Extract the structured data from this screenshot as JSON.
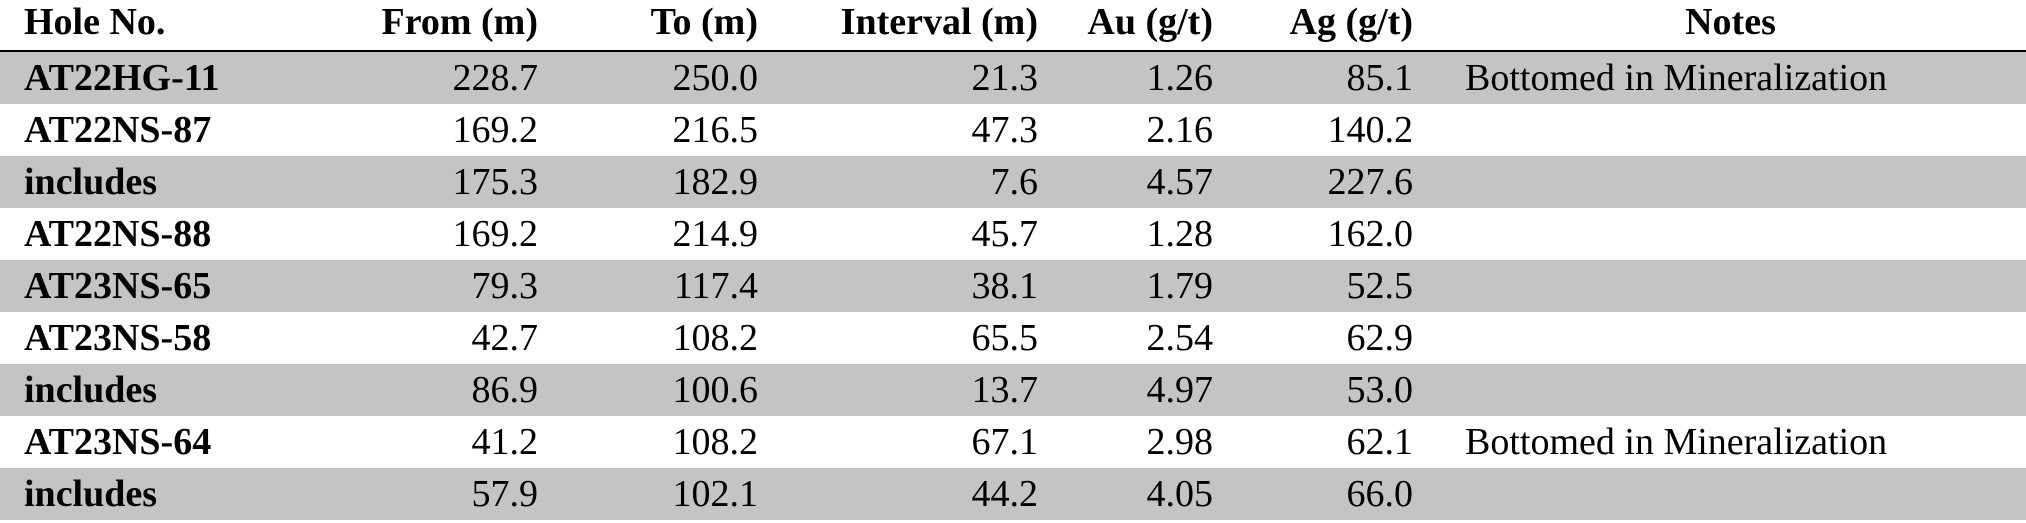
{
  "table": {
    "headers": [
      "Hole No.",
      "From (m)",
      "To (m)",
      "Interval (m)",
      "Au (g/t)",
      "Ag (g/t)",
      "Notes"
    ],
    "rows": [
      [
        "AT22HG-11",
        "228.7",
        "250.0",
        "21.3",
        "1.26",
        "85.1",
        "Bottomed in Mineralization"
      ],
      [
        "AT22NS-87",
        "169.2",
        "216.5",
        "47.3",
        "2.16",
        "140.2",
        null
      ],
      [
        "includes",
        "175.3",
        "182.9",
        "7.6",
        "4.57",
        "227.6",
        null
      ],
      [
        "AT22NS-88",
        "169.2",
        "214.9",
        "45.7",
        "1.28",
        "162.0",
        null
      ],
      [
        "AT23NS-65",
        "79.3",
        "117.4",
        "38.1",
        "1.79",
        "52.5",
        null
      ],
      [
        "AT23NS-58",
        "42.7",
        "108.2",
        "65.5",
        "2.54",
        "62.9",
        null
      ],
      [
        "includes",
        "86.9",
        "100.6",
        "13.7",
        "4.97",
        "53.0",
        null
      ],
      [
        "AT23NS-64",
        "41.2",
        "108.2",
        "67.1",
        "2.98",
        "62.1",
        "Bottomed in Mineralization"
      ],
      [
        "includes",
        "57.9",
        "102.1",
        "44.2",
        "4.05",
        "66.0",
        null
      ]
    ]
  }
}
